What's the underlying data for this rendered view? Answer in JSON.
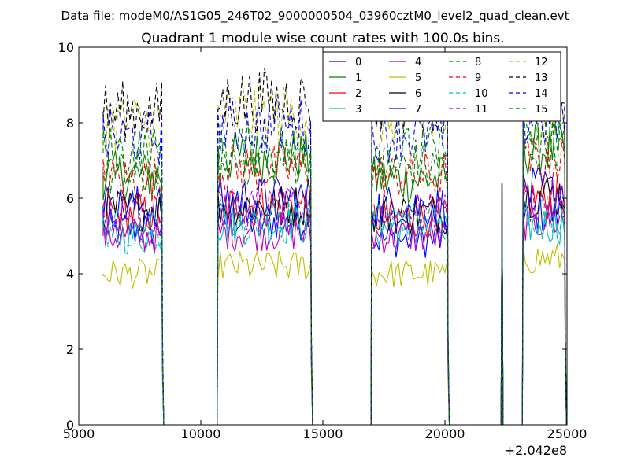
{
  "header": {
    "datafile": "Data file: modeM0/AS1G05_246T02_9000000504_03960cztM0_level2_quad_clean.evt"
  },
  "chart_data": {
    "type": "line",
    "title": "Quadrant 1 module wise count rates with 100.0s bins.",
    "xlabel": "",
    "ylabel": "",
    "xlim": [
      5000,
      25000
    ],
    "ylim": [
      0,
      10
    ],
    "x_offset_label": "+2.042e8",
    "x_ticks": [
      5000,
      10000,
      15000,
      20000,
      25000
    ],
    "x_tick_labels": [
      "5000",
      "10000",
      "15000",
      "20000",
      "25000"
    ],
    "y_ticks": [
      0,
      2,
      4,
      6,
      8,
      10
    ],
    "y_tick_labels": [
      "0",
      "2",
      "4",
      "6",
      "8",
      "10"
    ],
    "grid": false,
    "legend_position": "top-right",
    "legend_columns": 4,
    "bin_seconds": 100,
    "observing_windows": [
      {
        "start": 6000,
        "end": 8400
      },
      {
        "start": 10700,
        "end": 14500
      },
      {
        "start": 17000,
        "end": 20100
      },
      {
        "start": 23200,
        "end": 24900
      }
    ],
    "spike": {
      "x_start": 22300,
      "x_end": 22450,
      "peak": 6.4
    },
    "series": [
      {
        "name": "0",
        "color": "#0000ff",
        "dash": "solid",
        "levels": [
          5.2,
          5.4,
          4.9,
          5.6
        ]
      },
      {
        "name": "1",
        "color": "#008000",
        "dash": "solid",
        "levels": [
          6.6,
          7.1,
          6.5,
          7.3
        ]
      },
      {
        "name": "2",
        "color": "#ff0000",
        "dash": "solid",
        "levels": [
          5.6,
          5.8,
          5.5,
          6.0
        ]
      },
      {
        "name": "3",
        "color": "#00bfbf",
        "dash": "solid",
        "levels": [
          5.0,
          5.3,
          5.2,
          5.3
        ]
      },
      {
        "name": "4",
        "color": "#bf00bf",
        "dash": "solid",
        "levels": [
          5.0,
          5.1,
          5.0,
          5.4
        ]
      },
      {
        "name": "5",
        "color": "#bfbf00",
        "dash": "solid",
        "levels": [
          4.0,
          4.2,
          4.0,
          4.4
        ]
      },
      {
        "name": "6",
        "color": "#000000",
        "dash": "solid",
        "levels": [
          5.7,
          5.8,
          5.6,
          6.1
        ]
      },
      {
        "name": "7",
        "color": "#0000ff",
        "dash": "solid",
        "levels": [
          5.8,
          6.0,
          5.8,
          6.2
        ]
      },
      {
        "name": "8",
        "color": "#008000",
        "dash": "dashed",
        "levels": [
          6.6,
          7.0,
          6.8,
          7.4
        ]
      },
      {
        "name": "9",
        "color": "#ff0000",
        "dash": "dashed",
        "levels": [
          6.5,
          6.8,
          6.6,
          7.0
        ]
      },
      {
        "name": "10",
        "color": "#00bfbf",
        "dash": "dashed",
        "levels": [
          5.2,
          5.5,
          5.4,
          5.6
        ]
      },
      {
        "name": "11",
        "color": "#bf00bf",
        "dash": "dashed",
        "levels": [
          5.5,
          5.7,
          5.6,
          5.9
        ]
      },
      {
        "name": "12",
        "color": "#bfbf00",
        "dash": "dashed",
        "levels": [
          8.0,
          8.2,
          8.1,
          8.4
        ]
      },
      {
        "name": "13",
        "color": "#000000",
        "dash": "dashed",
        "levels": [
          8.3,
          8.6,
          8.5,
          8.9
        ]
      },
      {
        "name": "14",
        "color": "#0000ff",
        "dash": "dashed",
        "levels": [
          7.6,
          7.9,
          7.7,
          8.1
        ]
      },
      {
        "name": "15",
        "color": "#008000",
        "dash": "dashed",
        "levels": [
          7.2,
          7.3,
          7.2,
          7.6
        ]
      }
    ]
  }
}
